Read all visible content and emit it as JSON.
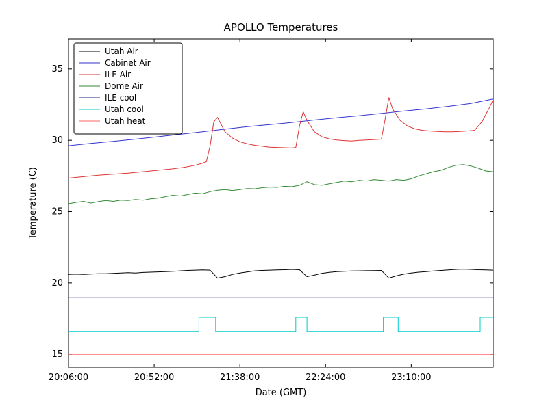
{
  "chart_data": {
    "type": "line",
    "title": "APOLLO Temperatures",
    "xlabel": "Date (GMT)",
    "ylabel": "Temperature (C)",
    "x_unit": "minutes since 20:06:00 GMT",
    "xlim": [
      0,
      228
    ],
    "ylim": [
      14.1,
      37.1
    ],
    "grid": false,
    "legend_position": "upper left",
    "x_ticks": [
      {
        "value": 0,
        "label": "20:06:00"
      },
      {
        "value": 46,
        "label": "20:52:00"
      },
      {
        "value": 92,
        "label": "21:38:00"
      },
      {
        "value": 138,
        "label": "22:24:00"
      },
      {
        "value": 184,
        "label": "23:10:00"
      }
    ],
    "y_ticks": [
      15,
      20,
      25,
      30,
      35
    ],
    "series": [
      {
        "name": "Utah Air",
        "color": "#000000",
        "x": [
          0,
          4,
          8,
          12,
          16,
          20,
          24,
          28,
          32,
          36,
          40,
          44,
          48,
          52,
          56,
          60,
          64,
          68,
          72,
          76,
          80,
          84,
          88,
          92,
          96,
          100,
          104,
          108,
          112,
          116,
          120,
          124,
          128,
          132,
          136,
          140,
          144,
          148,
          152,
          156,
          160,
          164,
          168,
          172,
          176,
          180,
          184,
          188,
          192,
          196,
          200,
          204,
          208,
          212,
          216,
          220,
          224,
          228
        ],
        "y": [
          20.6,
          20.62,
          20.6,
          20.63,
          20.65,
          20.65,
          20.68,
          20.7,
          20.72,
          20.7,
          20.74,
          20.76,
          20.78,
          20.8,
          20.82,
          20.85,
          20.88,
          20.9,
          20.92,
          20.9,
          20.35,
          20.45,
          20.6,
          20.7,
          20.78,
          20.85,
          20.88,
          20.9,
          20.92,
          20.93,
          20.95,
          20.93,
          20.45,
          20.55,
          20.68,
          20.75,
          20.8,
          20.82,
          20.84,
          20.85,
          20.86,
          20.87,
          20.88,
          20.35,
          20.5,
          20.62,
          20.7,
          20.76,
          20.8,
          20.84,
          20.88,
          20.92,
          20.95,
          20.97,
          20.95,
          20.93,
          20.92,
          20.9
        ]
      },
      {
        "name": "Cabinet Air",
        "color": "#3333cc",
        "x": [
          0,
          12,
          24,
          36,
          48,
          60,
          72,
          84,
          96,
          108,
          120,
          132,
          144,
          156,
          168,
          180,
          192,
          204,
          216,
          228
        ],
        "y": [
          29.62,
          29.78,
          29.92,
          30.08,
          30.25,
          30.42,
          30.6,
          30.78,
          30.95,
          31.1,
          31.25,
          31.42,
          31.58,
          31.72,
          31.88,
          32.05,
          32.2,
          32.38,
          32.58,
          32.9
        ]
      },
      {
        "name": "ILE Air",
        "color": "#dd3333",
        "x": [
          0,
          8,
          16,
          24,
          32,
          40,
          48,
          56,
          62,
          68,
          72,
          74,
          76,
          78,
          80,
          82,
          84,
          88,
          92,
          96,
          100,
          104,
          108,
          112,
          116,
          120,
          122,
          124,
          126,
          128,
          132,
          136,
          140,
          144,
          148,
          152,
          156,
          160,
          164,
          168,
          170,
          172,
          174,
          178,
          182,
          186,
          190,
          194,
          198,
          202,
          206,
          210,
          214,
          218,
          222,
          226,
          228
        ],
        "y": [
          27.35,
          27.45,
          27.55,
          27.62,
          27.7,
          27.8,
          27.9,
          28.0,
          28.1,
          28.25,
          28.4,
          28.5,
          29.6,
          31.3,
          31.6,
          31.1,
          30.6,
          30.15,
          29.9,
          29.75,
          29.65,
          29.58,
          29.52,
          29.5,
          29.48,
          29.46,
          29.5,
          31.0,
          32.0,
          31.4,
          30.6,
          30.25,
          30.1,
          30.02,
          29.98,
          29.95,
          30.0,
          30.02,
          30.05,
          30.08,
          31.5,
          33.0,
          32.2,
          31.4,
          31.0,
          30.8,
          30.7,
          30.65,
          30.62,
          30.6,
          30.6,
          30.62,
          30.65,
          30.7,
          31.3,
          32.3,
          32.85
        ]
      },
      {
        "name": "Dome Air",
        "color": "#338a33",
        "x": [
          0,
          4,
          8,
          12,
          16,
          20,
          24,
          28,
          32,
          36,
          40,
          44,
          48,
          52,
          56,
          60,
          64,
          68,
          72,
          76,
          80,
          84,
          88,
          92,
          96,
          100,
          104,
          108,
          112,
          116,
          120,
          124,
          128,
          132,
          136,
          140,
          144,
          148,
          152,
          156,
          160,
          164,
          168,
          172,
          176,
          180,
          184,
          188,
          192,
          196,
          200,
          204,
          208,
          212,
          216,
          220,
          224,
          228
        ],
        "y": [
          25.55,
          25.65,
          25.72,
          25.6,
          25.7,
          25.78,
          25.72,
          25.8,
          25.78,
          25.85,
          25.8,
          25.9,
          25.95,
          26.05,
          26.15,
          26.1,
          26.2,
          26.3,
          26.25,
          26.4,
          26.5,
          26.55,
          26.48,
          26.55,
          26.62,
          26.6,
          26.68,
          26.72,
          26.7,
          26.78,
          26.75,
          26.85,
          27.1,
          26.9,
          26.85,
          26.95,
          27.05,
          27.15,
          27.1,
          27.2,
          27.15,
          27.25,
          27.2,
          27.15,
          27.25,
          27.2,
          27.3,
          27.5,
          27.65,
          27.8,
          27.9,
          28.1,
          28.25,
          28.3,
          28.2,
          28.05,
          27.85,
          27.8
        ]
      },
      {
        "name": "ILE cool",
        "color": "#202080",
        "x": [
          0,
          228
        ],
        "y": [
          19.0,
          19.0
        ]
      },
      {
        "name": "Utah cool",
        "color": "#00cccc",
        "x": [
          0,
          70,
          70,
          79,
          79,
          122,
          122,
          128,
          128,
          169,
          169,
          177,
          177,
          221,
          221,
          228
        ],
        "y": [
          16.6,
          16.6,
          17.6,
          17.6,
          16.6,
          16.6,
          17.6,
          17.6,
          16.6,
          16.6,
          17.6,
          17.6,
          16.6,
          16.6,
          17.6,
          17.6
        ]
      },
      {
        "name": "Utah heat",
        "color": "#ff6666",
        "x": [
          0,
          228
        ],
        "y": [
          15.0,
          15.0
        ]
      }
    ]
  }
}
